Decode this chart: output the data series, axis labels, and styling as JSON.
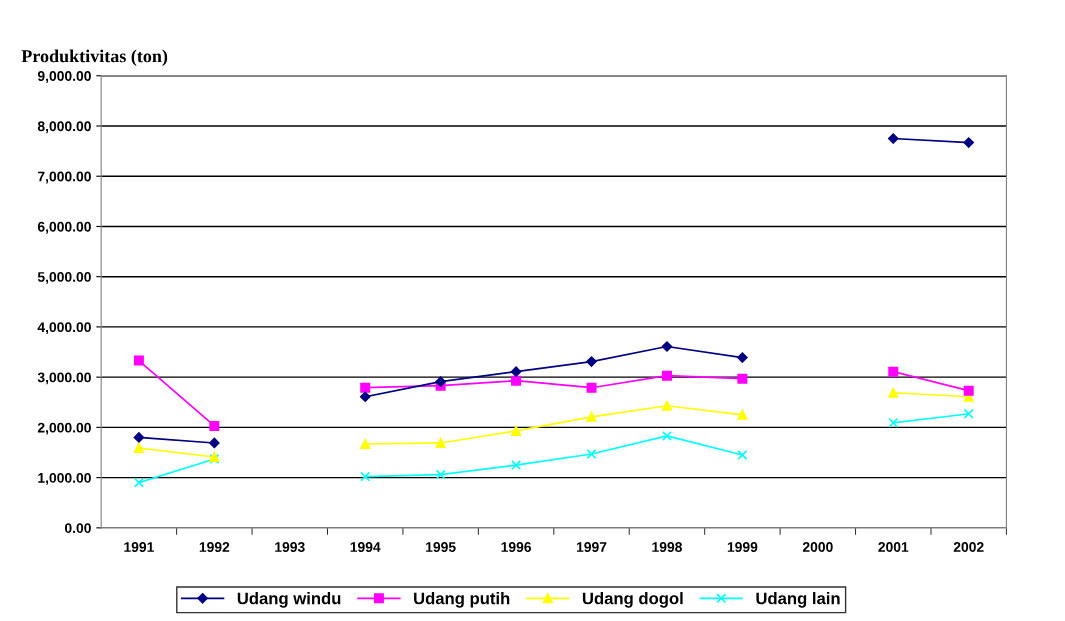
{
  "chart_data": {
    "type": "line",
    "ylabel": "Produktivitas (ton)",
    "categories": [
      "1991",
      "1992",
      "1993",
      "1994",
      "1995",
      "1996",
      "1997",
      "1998",
      "1999",
      "2000",
      "2001",
      "2002"
    ],
    "series": [
      {
        "name": "Udang windu",
        "color": "#000080",
        "marker": "diamond",
        "values": [
          1800,
          1690,
          null,
          2610,
          2910,
          3110,
          3310,
          3610,
          3390,
          null,
          7750,
          7670
        ]
      },
      {
        "name": "Udang putih",
        "color": "#ff00ff",
        "marker": "square",
        "values": [
          3330,
          2030,
          null,
          2790,
          2830,
          2930,
          2790,
          3030,
          2970,
          null,
          3110,
          2730
        ]
      },
      {
        "name": "Udang dogol",
        "color": "#ffff00",
        "marker": "triangle",
        "values": [
          1590,
          1410,
          null,
          1670,
          1690,
          1930,
          2210,
          2430,
          2250,
          null,
          2690,
          2610
        ]
      },
      {
        "name": "Udang lain",
        "color": "#00ffff",
        "marker": "cross",
        "values": [
          900,
          1370,
          null,
          1020,
          1060,
          1250,
          1470,
          1830,
          1450,
          null,
          2090,
          2270
        ]
      }
    ],
    "ylim": [
      0,
      9000
    ],
    "yticks": [
      {
        "value": 0,
        "label": "0.00"
      },
      {
        "value": 1000,
        "label": "1,000.00"
      },
      {
        "value": 2000,
        "label": "2,000.00"
      },
      {
        "value": 3000,
        "label": "3,000.00"
      },
      {
        "value": 4000,
        "label": "4,000.00"
      },
      {
        "value": 5000,
        "label": "5,000.00"
      },
      {
        "value": 6000,
        "label": "6,000.00"
      },
      {
        "value": 7000,
        "label": "7,000.00"
      },
      {
        "value": 8000,
        "label": "8,000.00"
      },
      {
        "value": 9000,
        "label": "9,000.00"
      }
    ],
    "grid": "y",
    "legend": "bottom",
    "line_style": "solid"
  }
}
